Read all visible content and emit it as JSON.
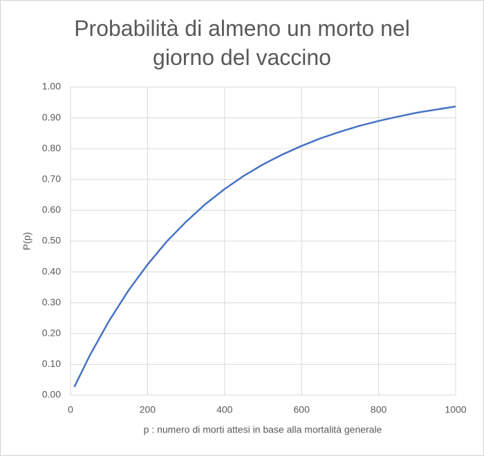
{
  "chart_data": {
    "type": "line",
    "title": "Probabilità di almeno un morto nel giorno del vaccino",
    "x_label": "p : numero di morti attesi in base alla mortalità generale",
    "y_label": "P(p)",
    "series": [
      {
        "name": "P(p)",
        "color": "#4472c4",
        "x": [
          10,
          50,
          100,
          150,
          200,
          250,
          300,
          350,
          400,
          450,
          500,
          550,
          600,
          650,
          700,
          750,
          800,
          850,
          900,
          950,
          1000
        ],
        "values": [
          0.027,
          0.129,
          0.241,
          0.339,
          0.424,
          0.499,
          0.563,
          0.62,
          0.669,
          0.712,
          0.749,
          0.781,
          0.809,
          0.834,
          0.855,
          0.874,
          0.89,
          0.904,
          0.917,
          0.927,
          0.937
        ]
      }
    ],
    "xlim": [
      0,
      1000
    ],
    "xticks": [
      0,
      200,
      400,
      600,
      800,
      1000
    ],
    "ylim": [
      0,
      1
    ],
    "yticks": [
      {
        "value": 0,
        "label": "0.00"
      },
      {
        "value": 0.1,
        "label": "0.10"
      },
      {
        "value": 0.2,
        "label": "0.20"
      },
      {
        "value": 0.3,
        "label": "0.30"
      },
      {
        "value": 0.4,
        "label": "0.40"
      },
      {
        "value": 0.5,
        "label": "0.50"
      },
      {
        "value": 0.6,
        "label": "0.60"
      },
      {
        "value": 0.7,
        "label": "0.70"
      },
      {
        "value": 0.8,
        "label": "0.80"
      },
      {
        "value": 0.9,
        "label": "0.90"
      },
      {
        "value": 1,
        "label": "1.00"
      }
    ],
    "grid": true
  }
}
